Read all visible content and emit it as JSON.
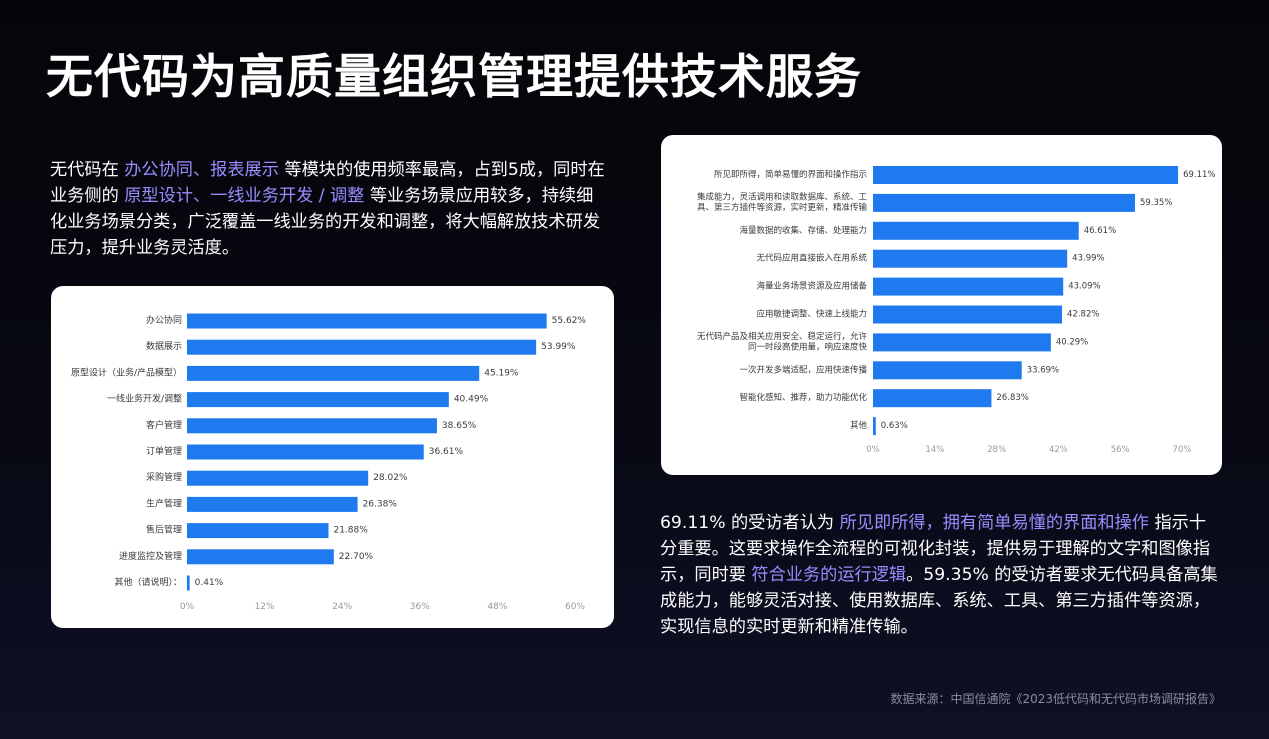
{
  "title": "无代码为高质量组织管理提供技术服务",
  "intro": {
    "segments": [
      {
        "text": "无代码在 ",
        "hl": false
      },
      {
        "text": "办公协同、报表展示",
        "hl": true
      },
      {
        "text": " 等模块的使用频率最高，占到5成，同时在业务侧的 ",
        "hl": false
      },
      {
        "text": "原型设计、一线业务开发 / 调整",
        "hl": true
      },
      {
        "text": " 等业务场景应用较多，持续细化业务场景分类，广泛覆盖一线业务的开发和调整，将大幅解放技术研发压力，提升业务灵活度。",
        "hl": false
      }
    ]
  },
  "finding": {
    "segments": [
      {
        "text": "69.11% 的受访者认为 ",
        "hl": false
      },
      {
        "text": "所见即所得，拥有简单易懂的界面和操作",
        "hl": true
      },
      {
        "text": " 指示十分重要。这要求操作全流程的可视化封装，提供易于理解的文字和图像指示，同时要 ",
        "hl": false
      },
      {
        "text": "符合业务的运行逻辑",
        "hl": true
      },
      {
        "text": "。59.35% 的受访者要求无代码具备高集成能力，能够灵活对接、使用数据库、系统、工具、第三方插件等资源，实现信息的实时更新和精准传输。",
        "hl": false
      }
    ]
  },
  "source": "数据来源：中国信通院《2023低代码和无代码市场调研报告》",
  "colors": {
    "bar": "#1f7af0",
    "highlight": "#9a8cff",
    "label": "#3b3b3b",
    "tick": "#9a9a9a"
  },
  "chart_data": [
    {
      "type": "bar",
      "orientation": "horizontal",
      "categories": [
        "办公协同",
        "数据展示",
        "原型设计（业务/产品模型）",
        "一线业务开发/调整",
        "客户管理",
        "订单管理",
        "采购管理",
        "生产管理",
        "售后管理",
        "进度监控及管理",
        "其他（请说明）："
      ],
      "values": [
        55.62,
        53.99,
        45.19,
        40.49,
        38.65,
        36.61,
        28.02,
        26.38,
        21.88,
        22.7,
        0.41
      ],
      "value_labels": [
        "55.62%",
        "53.99%",
        "45.19%",
        "40.49%",
        "38.65%",
        "36.61%",
        "28.02%",
        "26.38%",
        "21.88%",
        "22.70%",
        "0.41%"
      ],
      "xticks": [
        "0%",
        "12%",
        "24%",
        "36%",
        "48%",
        "60%"
      ],
      "xlim": [
        0,
        60
      ],
      "grid": false
    },
    {
      "type": "bar",
      "orientation": "horizontal",
      "categories": [
        "所见即所得，简单易懂的界面和操作指示",
        "集成能力，灵活调用和读取数据库、系统、工具、第三方插件等资源，实时更新，精准传输",
        "海量数据的收集、存储、处理能力",
        "无代码应用直接嵌入在用系统",
        "海量业务场景资源及应用储备",
        "应用敏捷调整、快速上线能力",
        "无代码产品及相关应用安全、稳定运行，允许同一时段高使用量，响应速度快",
        "一次开发多端适配，应用快速传播",
        "智能化感知、推荐，助力功能优化",
        "其他"
      ],
      "category_lines": [
        [
          "所见即所得，简单易懂的界面和操作指示"
        ],
        [
          "集成能力，灵活调用和读取数据库、系统、工",
          "具、第三方插件等资源，实时更新，精准传输"
        ],
        [
          "海量数据的收集、存储、处理能力"
        ],
        [
          "无代码应用直接嵌入在用系统"
        ],
        [
          "海量业务场景资源及应用储备"
        ],
        [
          "应用敏捷调整、快速上线能力"
        ],
        [
          "无代码产品及相关应用安全、稳定运行，允许",
          "同一时段高使用量，响应速度快"
        ],
        [
          "一次开发多端适配，应用快速传播"
        ],
        [
          "智能化感知、推荐，助力功能优化"
        ],
        [
          "其他"
        ]
      ],
      "values": [
        69.11,
        59.35,
        46.61,
        43.99,
        43.09,
        42.82,
        40.29,
        33.69,
        26.83,
        0.63
      ],
      "value_labels": [
        "69.11%",
        "59.35%",
        "46.61%",
        "43.99%",
        "43.09%",
        "42.82%",
        "40.29%",
        "33.69%",
        "26.83%",
        "0.63%"
      ],
      "xticks": [
        "0%",
        "14%",
        "28%",
        "42%",
        "56%",
        "70%"
      ],
      "xlim": [
        0,
        70
      ],
      "grid": false
    }
  ]
}
